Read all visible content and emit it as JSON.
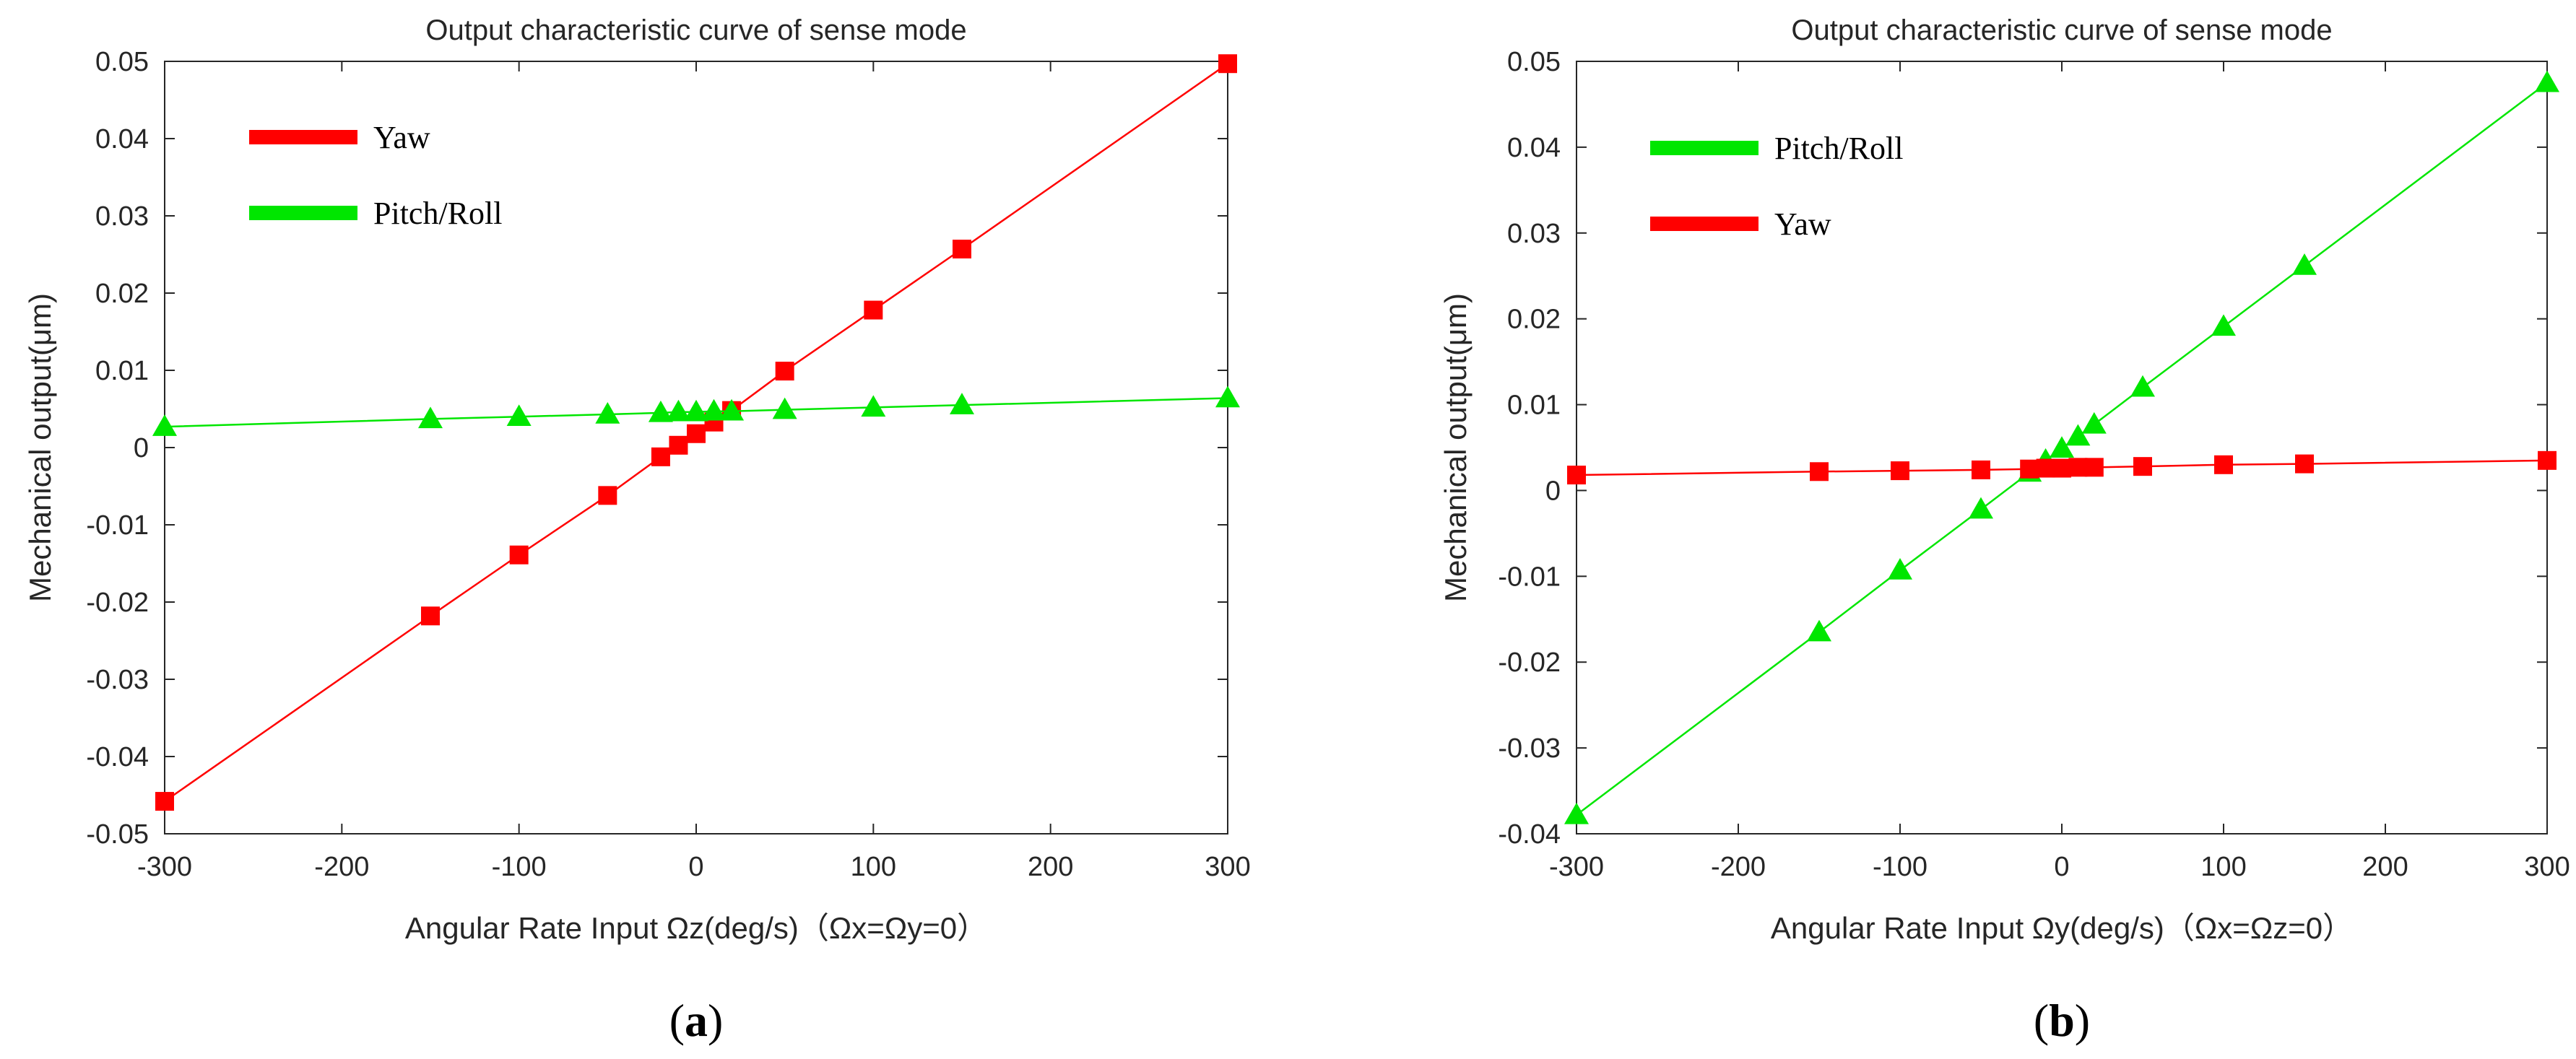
{
  "chart_data": [
    {
      "type": "line",
      "title": "Output characteristic curve of sense mode",
      "xlabel": "Angular Rate Input Ωz(deg/s)（Ωx=Ωy=0）",
      "ylabel": "Mechanical output(μm)",
      "xlim": [
        -300,
        300
      ],
      "ylim": [
        -0.05,
        0.05
      ],
      "xticks": [
        -300,
        -200,
        -100,
        0,
        100,
        200,
        300
      ],
      "yticks": [
        -0.05,
        -0.04,
        -0.03,
        -0.02,
        -0.01,
        0,
        0.01,
        0.02,
        0.03,
        0.04,
        0.05
      ],
      "xtick_labels": [
        "-300",
        "-200",
        "-100",
        "0",
        "100",
        "200",
        "300"
      ],
      "ytick_labels": [
        "-0.05",
        "-0.04",
        "-0.03",
        "-0.02",
        "-0.01",
        "0",
        "0.01",
        "0.02",
        "0.03",
        "0.04",
        "0.05"
      ],
      "sub_label": "a",
      "legend": "top-left",
      "series": [
        {
          "name": "Yaw",
          "color": "#ff0000",
          "marker": "square",
          "x": [
            -300,
            -150,
            -100,
            -50,
            -20,
            -10,
            0,
            10,
            20,
            50,
            100,
            150,
            300
          ],
          "y": [
            -0.0458,
            -0.0218,
            -0.0139,
            -0.0062,
            -0.0012,
            0.0003,
            0.0018,
            0.0033,
            0.0048,
            0.0099,
            0.0178,
            0.0257,
            0.0497
          ]
        },
        {
          "name": "Pitch/Roll",
          "color": "#00e600",
          "marker": "triangle",
          "x": [
            -300,
            -150,
            -100,
            -50,
            -20,
            -10,
            0,
            10,
            20,
            50,
            100,
            150,
            300
          ],
          "y": [
            0.0027,
            0.0037,
            0.004,
            0.0043,
            0.0045,
            0.0046,
            0.0046,
            0.0047,
            0.0047,
            0.0049,
            0.0052,
            0.0055,
            0.0064
          ]
        }
      ]
    },
    {
      "type": "line",
      "title": "Output characteristic curve of sense mode",
      "xlabel": "Angular Rate Input Ωy(deg/s)（Ωx=Ωz=0）",
      "ylabel": "Mechanical output(μm)",
      "xlim": [
        -300,
        300
      ],
      "ylim": [
        -0.04,
        0.05
      ],
      "xticks": [
        -300,
        -200,
        -100,
        0,
        100,
        200,
        300
      ],
      "yticks": [
        -0.04,
        -0.03,
        -0.02,
        -0.01,
        0,
        0.01,
        0.02,
        0.03,
        0.04,
        0.05
      ],
      "xtick_labels": [
        "-300",
        "-200",
        "-100",
        "0",
        "100",
        "200",
        "300"
      ],
      "ytick_labels": [
        "-0.04",
        "-0.03",
        "-0.02",
        "-0.01",
        "0",
        "0.01",
        "0.02",
        "0.03",
        "0.04",
        "0.05"
      ],
      "sub_label": "b",
      "legend": "top-left",
      "series": [
        {
          "name": "Pitch/Roll",
          "color": "#00e600",
          "marker": "triangle",
          "x": [
            -300,
            -150,
            -100,
            -50,
            -20,
            -10,
            0,
            10,
            20,
            50,
            100,
            150,
            300
          ],
          "y": [
            -0.0378,
            -0.0165,
            -0.0093,
            -0.0022,
            0.0021,
            0.0035,
            0.0049,
            0.0063,
            0.0077,
            0.012,
            0.0191,
            0.0262,
            0.0475
          ]
        },
        {
          "name": "Yaw",
          "color": "#ff0000",
          "marker": "square",
          "x": [
            -300,
            -150,
            -100,
            -50,
            -20,
            -10,
            0,
            10,
            20,
            50,
            100,
            150,
            300
          ],
          "y": [
            0.0018,
            0.0022,
            0.0023,
            0.0024,
            0.0025,
            0.0026,
            0.0026,
            0.0027,
            0.0027,
            0.0028,
            0.003,
            0.0031,
            0.0035
          ]
        }
      ]
    }
  ]
}
